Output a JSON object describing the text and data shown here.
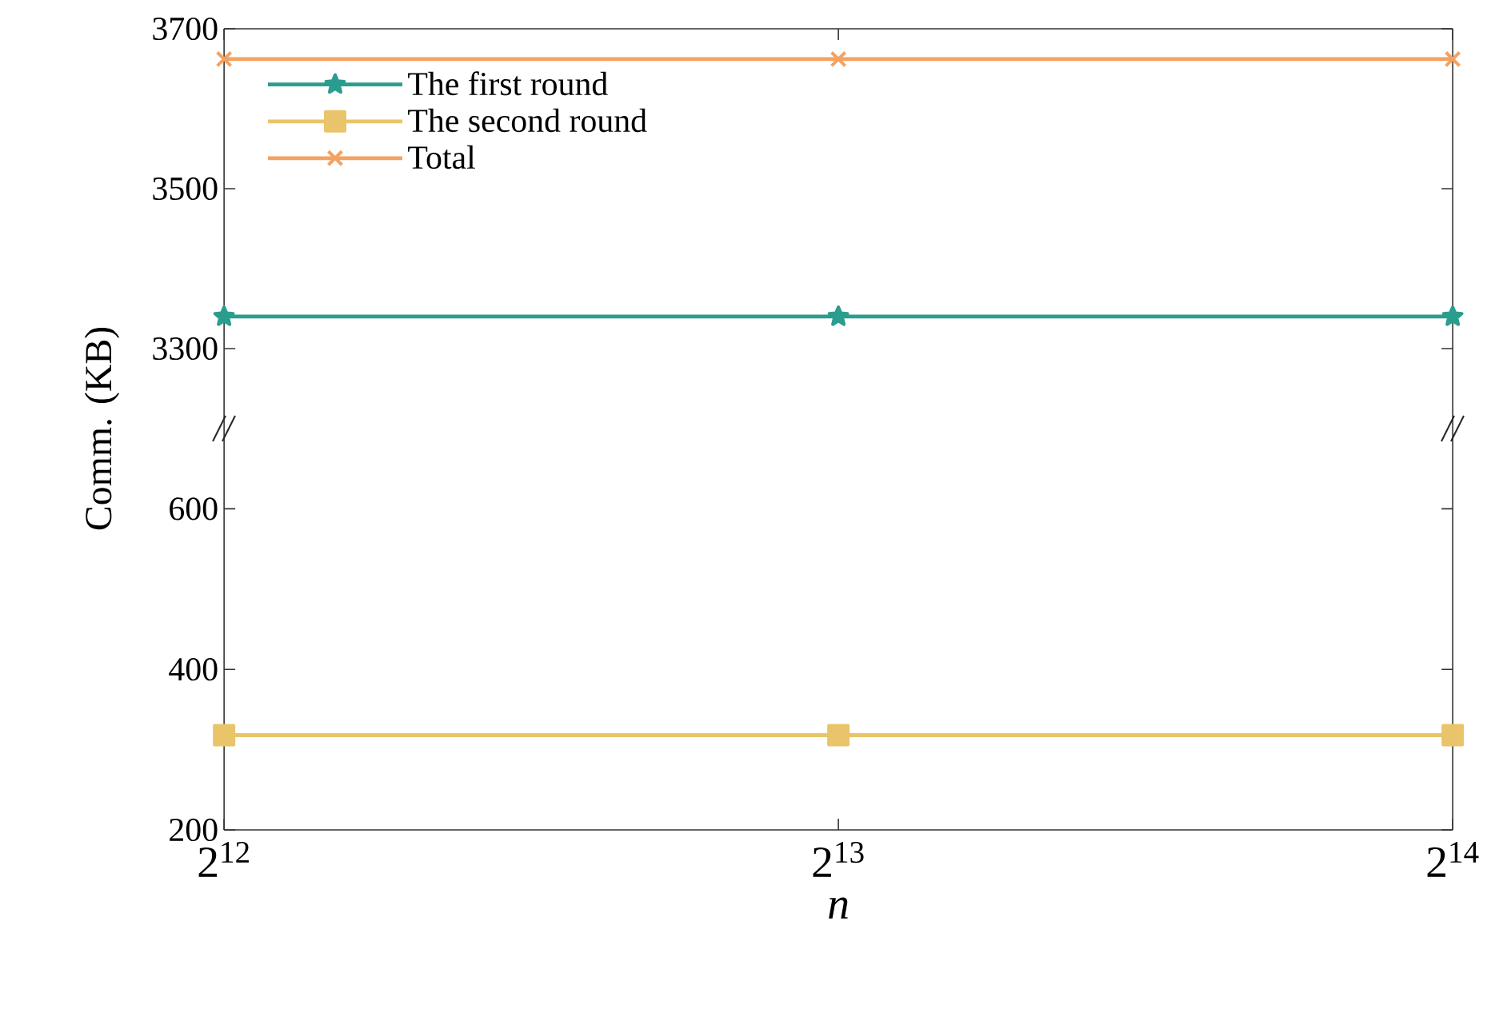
{
  "chart_data": [
    {
      "type": "line",
      "ylabel": "Comm. (KB)",
      "log": "x",
      "x": [
        4096,
        8192,
        16384
      ],
      "xlim": [
        4096,
        16384
      ],
      "xticks": [
        {
          "value": 4096,
          "label": null
        },
        {
          "value": 8192,
          "label": null
        },
        {
          "value": 16384,
          "label": null
        }
      ],
      "ylim": [
        3200,
        3700
      ],
      "yticks": [
        3300,
        3500,
        3700
      ],
      "tick_labels": "y",
      "legend": "top left",
      "grid": false,
      "series": [
        {
          "name": "The first round",
          "color": "#2a9d8f",
          "marker": "star",
          "values": [
            3340,
            3340,
            3340
          ]
        },
        {
          "name": "The second round",
          "color": "#e9c46a",
          "marker": "square",
          "values": [
            null,
            null,
            null
          ]
        },
        {
          "name": "Total",
          "color": "#f4a261",
          "marker": "cross",
          "values": [
            3662,
            3662,
            3662
          ]
        }
      ]
    },
    {
      "type": "line",
      "xlabel": "n",
      "log": "x",
      "x": [
        4096,
        8192,
        16384
      ],
      "xlim": [
        4096,
        16384
      ],
      "xticks": [
        {
          "value": 4096,
          "label": "2$^{12}$"
        },
        {
          "value": 8192,
          "label": "2$^{13}$"
        },
        {
          "value": 16384,
          "label": "2$^{14}$"
        }
      ],
      "ylim": [
        200,
        700
      ],
      "yticks": [
        200,
        400,
        600
      ],
      "grid": false,
      "series": [
        {
          "color": "#e9c46a",
          "marker": "square",
          "values": [
            318,
            318,
            318
          ]
        }
      ]
    }
  ]
}
